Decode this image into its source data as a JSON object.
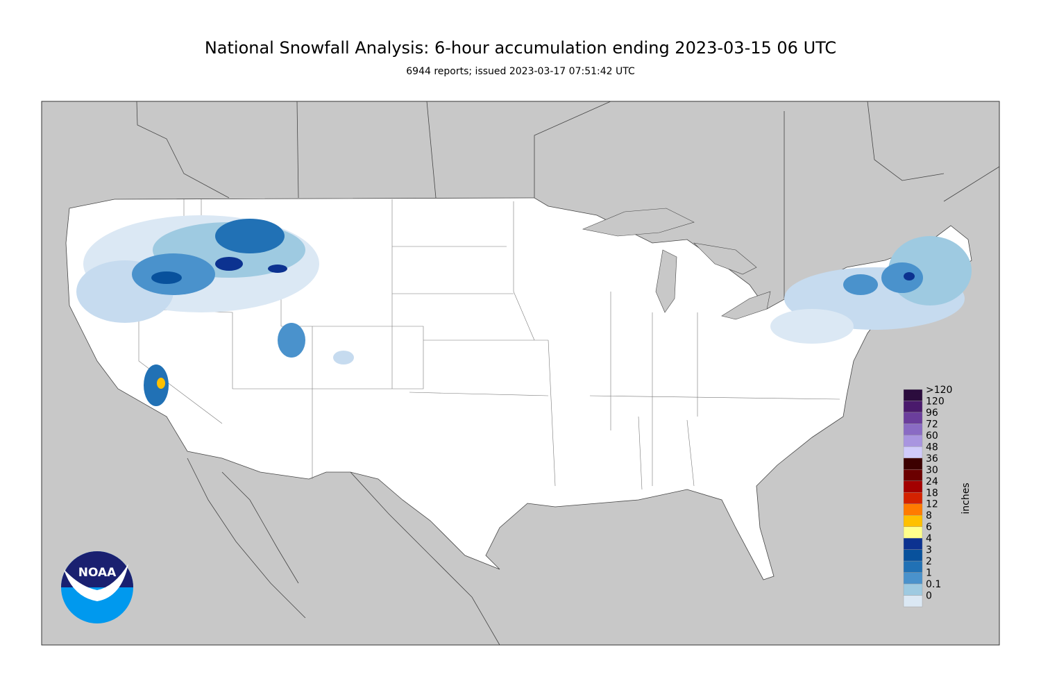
{
  "header": {
    "title": "National Snowfall Analysis: 6-hour accumulation ending 2023-03-15 06 UTC",
    "subtitle": "6944 reports; issued 2023-03-17 07:51:42 UTC"
  },
  "legend": {
    "unit": "inches",
    "levels": [
      {
        "label": ">120",
        "color": "#2b0c3d"
      },
      {
        "label": "120",
        "color": "#4a1a6c"
      },
      {
        "label": "96",
        "color": "#6b3e9c"
      },
      {
        "label": "72",
        "color": "#8a6bc4"
      },
      {
        "label": "60",
        "color": "#a995e0"
      },
      {
        "label": "48",
        "color": "#d0cbfb"
      },
      {
        "label": "36",
        "color": "#3c0000"
      },
      {
        "label": "30",
        "color": "#6b0000"
      },
      {
        "label": "24",
        "color": "#a30000"
      },
      {
        "label": "18",
        "color": "#d42200"
      },
      {
        "label": "12",
        "color": "#ff7b00"
      },
      {
        "label": "8",
        "color": "#ffc000"
      },
      {
        "label": "6",
        "color": "#ffff8c"
      },
      {
        "label": "4",
        "color": "#0c3290"
      },
      {
        "label": "3",
        "color": "#08519c"
      },
      {
        "label": "2",
        "color": "#2171b5"
      },
      {
        "label": "1",
        "color": "#4a92cc"
      },
      {
        "label": "0.1",
        "color": "#9ecae1"
      },
      {
        "label": "0",
        "color": "#dbe8f4"
      }
    ]
  },
  "logo": {
    "text": "NOAA"
  }
}
